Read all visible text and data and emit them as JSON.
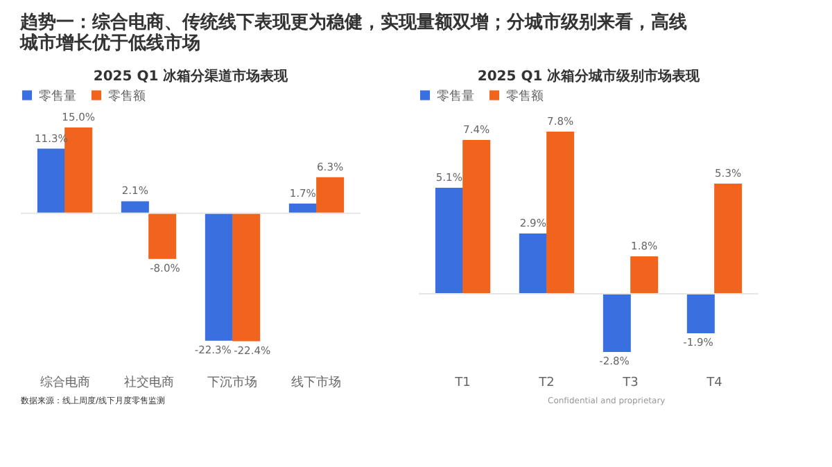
{
  "chart_data": [
    {
      "type": "bar",
      "title": "2025 Q1 冰箱分渠道市场表现",
      "categories": [
        "综合电商",
        "社交电商",
        "下沉市场",
        "线下市场"
      ],
      "legend": "top",
      "series": [
        {
          "name": "零售量",
          "color": "#3a6fe0",
          "values": [
            11.3,
            2.1,
            -22.3,
            1.7
          ],
          "value_labels": [
            "11.3%",
            "2.1%",
            "-22.3%",
            "1.7%"
          ]
        },
        {
          "name": "零售额",
          "color": "#f0641e",
          "values": [
            15.0,
            -8.0,
            -22.4,
            6.3
          ],
          "value_labels": [
            "15.0%",
            "-8.0%",
            "-22.4%",
            "6.3%"
          ]
        }
      ],
      "annotations": [
        "趋势一：综合电商、传统线下表现更为稳健，实现量额双增；分城市级别来看，高线城市增长优于低线市场",
        "数据来源：线上周度/线下月度零售监测"
      ]
    },
    {
      "type": "bar",
      "title": "2025 Q1 冰箱分城市级别市场表现",
      "categories": [
        "T1",
        "T2",
        "T3",
        "T4"
      ],
      "legend": "top",
      "series": [
        {
          "name": "零售量",
          "color": "#3a6fe0",
          "values": [
            5.1,
            2.9,
            -2.8,
            -1.9
          ],
          "value_labels": [
            "5.1%",
            "2.9%",
            "-2.8%",
            "-1.9%"
          ]
        },
        {
          "name": "零售额",
          "color": "#f0641e",
          "values": [
            7.4,
            7.8,
            1.8,
            5.3
          ],
          "value_labels": [
            "7.4%",
            "7.8%",
            "1.8%",
            "5.3%"
          ]
        }
      ],
      "annotations": [
        "Confidential and proprietary"
      ]
    }
  ]
}
